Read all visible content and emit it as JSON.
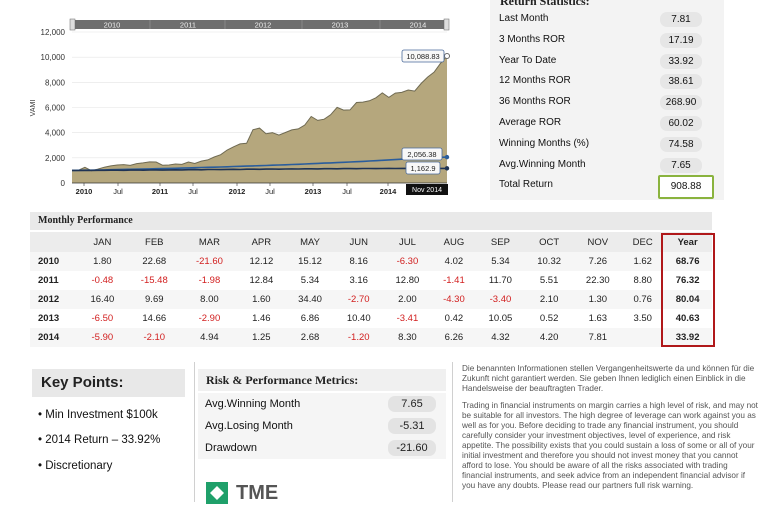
{
  "chart_data": {
    "type": "area",
    "ylabel": "VAMI",
    "ylim": [
      0,
      12000
    ],
    "yticks": [
      "0",
      "2,000",
      "4,000",
      "6,000",
      "8,000",
      "10,000",
      "12,000"
    ],
    "xticks": [
      "2010",
      "Jul",
      "2011",
      "Jul",
      "2012",
      "Jul",
      "2013",
      "Jul",
      "2014",
      "Nov 2014"
    ],
    "navigator_years": [
      "2010",
      "2011",
      "2012",
      "2013",
      "2014"
    ],
    "series": [
      {
        "values": [
          1000,
          1018,
          1245,
          980,
          1102,
          1254,
          1358,
          1428,
          1466,
          1396,
          1539,
          1600,
          1678,
          1670,
          1411,
          1431,
          1509,
          1482,
          1672,
          1553,
          1738,
          1834,
          2069,
          2251,
          2620,
          2874,
          3104,
          3154,
          4239,
          4365,
          3917,
          3996,
          3809,
          4013,
          4220,
          4303,
          4612,
          5287,
          4977,
          5072,
          5420,
          6006,
          5793,
          5813,
          6398,
          6431,
          6536,
          6770,
          7158,
          6806,
          7142,
          7197,
          7394,
          7304,
          7911,
          8415,
          8808,
          9509,
          10089
        ]
      },
      {
        "values": [
          1000,
          1008,
          1016,
          1020,
          1032,
          1044,
          1058,
          1066,
          1078,
          1090,
          1098,
          1110,
          1120,
          1134,
          1148,
          1160,
          1172,
          1186,
          1200,
          1214,
          1230,
          1244,
          1258,
          1272,
          1290,
          1308,
          1324,
          1340,
          1358,
          1376,
          1394,
          1412,
          1430,
          1450,
          1470,
          1490,
          1512,
          1534,
          1556,
          1578,
          1600,
          1624,
          1648,
          1672,
          1696,
          1720,
          1748,
          1776,
          1804,
          1832,
          1860,
          1890,
          1920,
          1950,
          1980,
          2000,
          2020,
          2040,
          2056
        ]
      },
      {
        "values": [
          1000,
          995,
          1004,
          998,
          1010,
          1006,
          1015,
          1020,
          1012,
          1024,
          1030,
          1018,
          1034,
          1040,
          1028,
          1045,
          1052,
          1040,
          1058,
          1064,
          1050,
          1070,
          1076,
          1062,
          1082,
          1088,
          1076,
          1094,
          1100,
          1090,
          1106,
          1112,
          1100,
          1116,
          1122,
          1110,
          1126,
          1132,
          1120,
          1136,
          1140,
          1130,
          1144,
          1148,
          1138,
          1150,
          1154,
          1144,
          1156,
          1158,
          1150,
          1160,
          1161,
          1155,
          1162,
          1160,
          1158,
          1161,
          1163
        ]
      }
    ],
    "end_labels": [
      "10,088.83",
      "2,056.38",
      "1,162.9"
    ],
    "colors": {
      "fill": "#b5a77d",
      "line": "#6f6a52",
      "benchmark1": "#2a5d9c",
      "benchmark2": "#1f3354"
    }
  },
  "stats": {
    "title": "Return Statistics:",
    "rows": [
      {
        "label": "Last Month",
        "value": "7.81"
      },
      {
        "label": "3 Months ROR",
        "value": "17.19"
      },
      {
        "label": "Year To Date",
        "value": "33.92"
      },
      {
        "label": "12 Months ROR",
        "value": "38.61"
      },
      {
        "label": "36 Months ROR",
        "value": "268.90"
      },
      {
        "label": "Average ROR",
        "value": "60.02"
      },
      {
        "label": "Winning Months (%)",
        "value": "74.58"
      },
      {
        "label": "Avg.Winning Month",
        "value": "7.65"
      },
      {
        "label": "Total Return",
        "value": "908.88"
      }
    ]
  },
  "monthly": {
    "title": "Monthly Performance",
    "headers": [
      "",
      "JAN",
      "FEB",
      "MAR",
      "APR",
      "MAY",
      "JUN",
      "JUL",
      "AUG",
      "SEP",
      "OCT",
      "NOV",
      "DEC",
      "Year"
    ],
    "rows": [
      [
        "2010",
        "1.80",
        "22.68",
        "-21.60",
        "12.12",
        "15.12",
        "8.16",
        "-6.30",
        "4.02",
        "5.34",
        "10.32",
        "7.26",
        "1.62",
        "68.76"
      ],
      [
        "2011",
        "-0.48",
        "-15.48",
        "-1.98",
        "12.84",
        "5.34",
        "3.16",
        "12.80",
        "-1.41",
        "11.70",
        "5.51",
        "22.30",
        "8.80",
        "76.32"
      ],
      [
        "2012",
        "16.40",
        "9.69",
        "8.00",
        "1.60",
        "34.40",
        "-2.70",
        "2.00",
        "-4.30",
        "-3.40",
        "2.10",
        "1.30",
        "0.76",
        "80.04"
      ],
      [
        "2013",
        "-6.50",
        "14.66",
        "-2.90",
        "1.46",
        "6.86",
        "10.40",
        "-3.41",
        "0.42",
        "10.05",
        "0.52",
        "1.63",
        "3.50",
        "40.63"
      ],
      [
        "2014",
        "-5.90",
        "-2.10",
        "4.94",
        "1.25",
        "2.68",
        "-1.20",
        "8.30",
        "6.26",
        "4.32",
        "4.20",
        "7.81",
        "",
        "33.92"
      ]
    ]
  },
  "key_points": {
    "title": "Key Points:",
    "items": [
      "Min Investment $100k",
      "2014 Return – 33.92%",
      "Discretionary"
    ]
  },
  "risk": {
    "title": "Risk & Performance Metrics:",
    "rows": [
      {
        "label": "Avg.Winning Month",
        "value": "7.65"
      },
      {
        "label": "Avg.Losing Month",
        "value": "-5.31"
      },
      {
        "label": "Drawdown",
        "value": "-21.60"
      }
    ]
  },
  "logo": {
    "text": "TME"
  },
  "disclaimer": {
    "p1": "Die benannten Informationen stellen Vergangenheitswerte da und können für die Zukunft nicht garantiert werden. Sie geben Ihnen lediglich einen Einblick in die Handelsweise der beauftragten Trader.",
    "p2": "Trading in financial instruments on margin carries a high level of risk, and may not be suitable for all investors. The high degree of leverage can work against you as well as for you. Before deciding to trade any financial instrument, you should carefully consider your investment objectives, level of experience, and risk appetite. The possibility exists that you could sustain a loss of some or all of your initial investment and therefore you should not invest money that you cannot afford to lose. You should be aware of all the risks associated with trading financial instruments, and seek advice from an independent financial advisor if you have any doubts. Please read our partners full risk warning."
  }
}
